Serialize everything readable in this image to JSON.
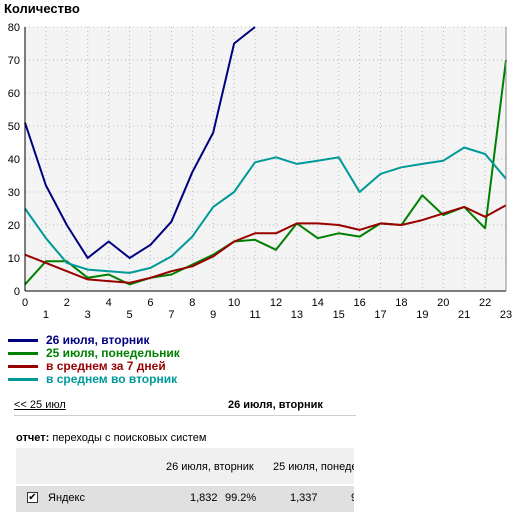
{
  "chart_data": {
    "type": "line",
    "title": "Количество",
    "xlabel": "",
    "ylabel": "",
    "x": [
      0,
      1,
      2,
      3,
      4,
      5,
      6,
      7,
      8,
      9,
      10,
      11,
      12,
      13,
      14,
      15,
      16,
      17,
      18,
      19,
      20,
      21,
      22,
      23
    ],
    "xlim": [
      0,
      23
    ],
    "ylim": [
      0,
      80
    ],
    "yticks": [
      0,
      10,
      20,
      30,
      40,
      50,
      60,
      70,
      80
    ],
    "grid": true,
    "legend_position": "bottom-left",
    "series": [
      {
        "name": "26 июля, вторник",
        "color": "#000080",
        "values": [
          51,
          32,
          20,
          10,
          15,
          10,
          14,
          21,
          36,
          48,
          75,
          80,
          null,
          null,
          null,
          null,
          null,
          null,
          null,
          null,
          null,
          null,
          null,
          null
        ]
      },
      {
        "name": "25 июля, понедельник",
        "color": "#008000",
        "values": [
          2,
          9,
          9,
          4,
          5,
          2,
          4,
          5,
          8,
          11,
          15,
          15.5,
          12.5,
          20.5,
          16,
          17.5,
          16.5,
          20.5,
          20,
          29,
          23,
          25.5,
          19,
          70
        ]
      },
      {
        "name": "в среднем за 7 дней",
        "color": "#990000",
        "values": [
          11,
          8.5,
          6,
          3.5,
          3,
          2.5,
          4,
          6,
          7.5,
          10.5,
          15,
          17.5,
          17.5,
          20.5,
          20.5,
          20,
          18.5,
          20.5,
          20,
          21.5,
          23.5,
          25.5,
          22.5,
          26
        ]
      },
      {
        "name": "в среднем во вторник",
        "color": "#009999",
        "values": [
          25,
          16,
          8.5,
          6.5,
          6,
          5.5,
          7,
          10.5,
          16.5,
          25.5,
          30,
          39,
          40.5,
          38.5,
          39.5,
          40.5,
          30,
          35.5,
          37.5,
          38.5,
          39.5,
          43.5,
          41.5,
          34
        ]
      }
    ]
  },
  "nav": {
    "prev_label": "<< 25 июл",
    "current_label": "26 июля, вторник"
  },
  "report": {
    "label": "отчет:",
    "value": "переходы с поисковых систем"
  },
  "table": {
    "headers": [
      "26 июля, вторник",
      "25 июля, понеде"
    ],
    "rows": [
      {
        "checked": true,
        "name": "Яндекс",
        "v1": "1,832",
        "p1": "99.2%",
        "v2": "1,337",
        "p2": "9"
      }
    ]
  }
}
